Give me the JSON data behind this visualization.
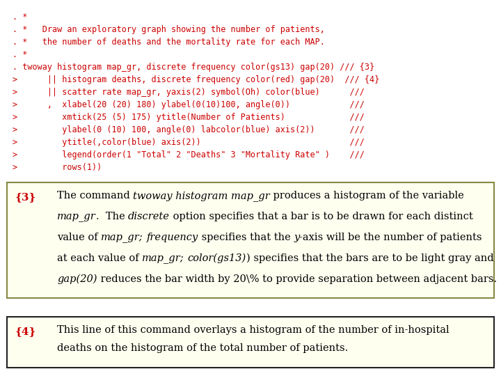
{
  "bg_color": "#ffffff",
  "figw": 7.2,
  "figh": 5.4,
  "dpi": 100,
  "code_color": "#cc0000",
  "code_font": "monospace",
  "code_size": 8.5,
  "code_lines": [
    ". *",
    ". *   Draw an exploratory graph showing the number of patients,",
    ". *   the number of deaths and the mortality rate for each MAP.",
    ". *",
    ". twoway histogram map_gr, discrete frequency color(gs13) gap(20) /// {3}",
    ">      || histogram deaths, discrete frequency color(red) gap(20)  /// {4}",
    ">      || scatter rate map_gr, yaxis(2) symbol(Oh) color(blue)      ///",
    ">      ,  xlabel(20 (20) 180) ylabel(0(10)100, angle(0))            ///",
    ">         xmtick(25 (5) 175) ytitle(Number of Patients)             ///",
    ">         ylabel(0 (10) 100, angle(0) labcolor(blue) axis(2))       ///",
    ">         ytitle(,color(blue) axis(2))                              ///",
    ">         legend(order(1 \"Total\" 2 \"Deaths\" 3 \"Mortality Rate\" )    ///",
    ">         rows(1))"
  ],
  "box3_bg": "#fffff0",
  "box3_border": "#888844",
  "box4_bg": "#fffff0",
  "box4_border": "#222222",
  "label_color": "#cc0000",
  "text_color": "#000000",
  "box3_label": "{3}",
  "box4_label": "{4}",
  "box3_line1_plain1": "The command ",
  "box3_line1_italic1": "twoway histogram map_gr",
  "box3_line1_plain2": " produces a histogram of the variable",
  "box3_line2_italic1": "map_gr",
  "box3_line2_plain1": ".  The ",
  "box3_line2_italic2": "discrete",
  "box3_line2_plain2": " option specifies that a bar is to be drawn for each distinct",
  "box3_line3_plain1": "value of ",
  "box3_line3_italic1": "map_gr;",
  "box3_line3_plain2": " ",
  "box3_line3_italic2": "frequency",
  "box3_line3_plain3": " specifies that the ",
  "box3_line3_italic3": "y",
  "box3_line3_plain4": "-axis will be the number of patients",
  "box3_line4_plain1": "at each value of ",
  "box3_line4_italic1": "map_gr;",
  "box3_line4_plain2": " ",
  "box3_line4_italic2": "color(gs13)",
  "box3_line4_plain3": ") specifies that the bars are to be light gray and",
  "box3_line5_italic1": "gap(20)",
  "box3_line5_plain1": " reduces the bar width by 20\\% to provide separation between adjacent bars.",
  "box4_line1": "This line of this command overlays a histogram of the number of in-hospital",
  "box4_line2": "deaths on the histogram of the total number of patients."
}
